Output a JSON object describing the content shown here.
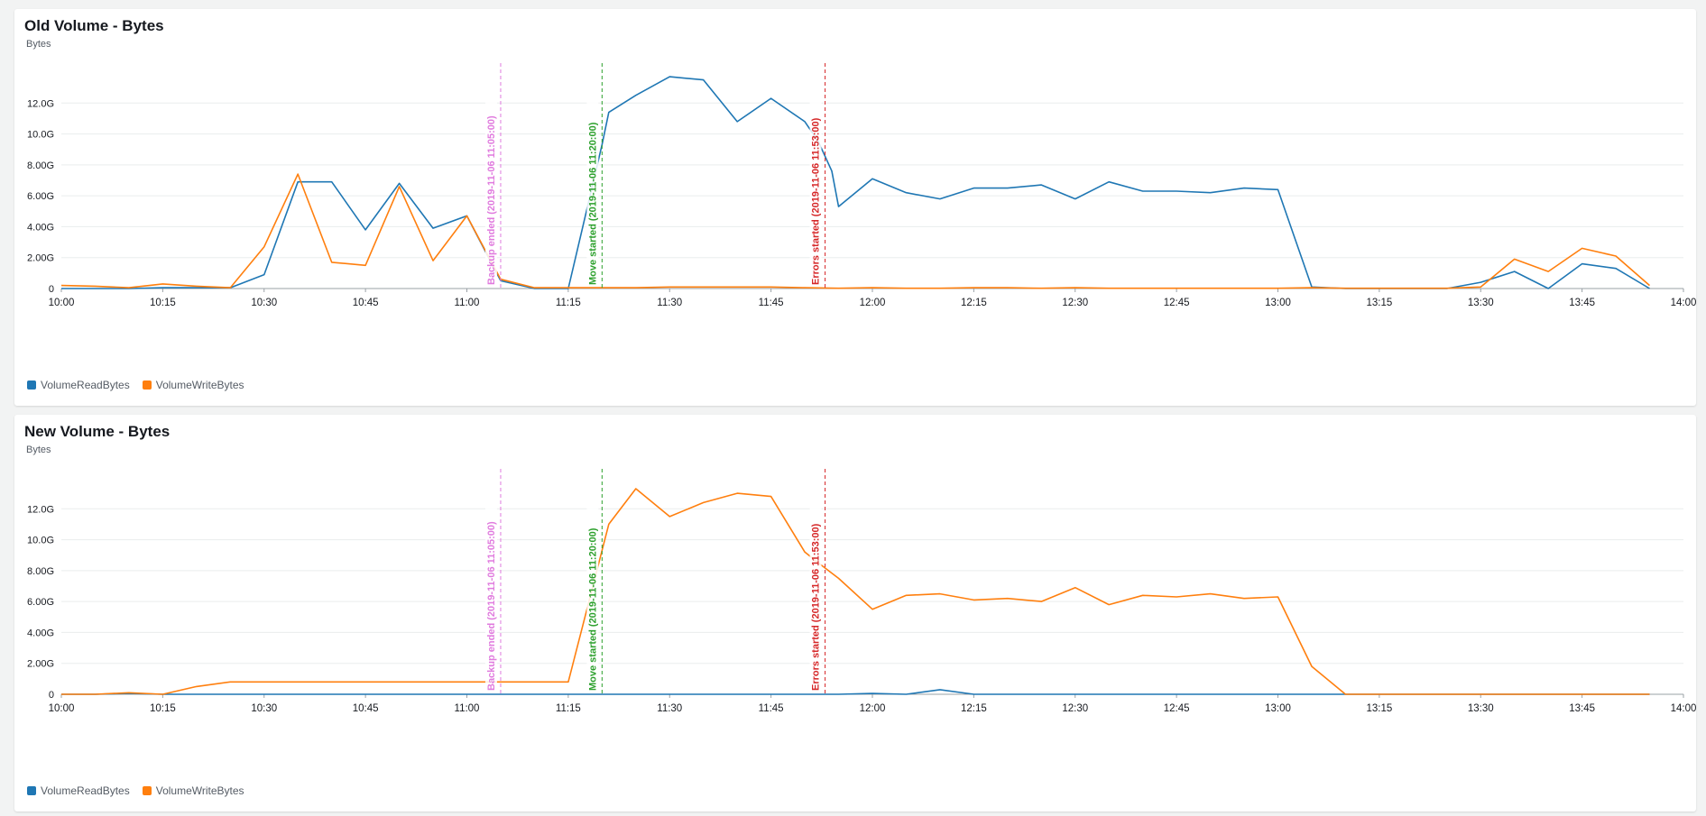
{
  "chart_data": [
    {
      "type": "line",
      "title": "Old Volume - Bytes",
      "ylabel": "Bytes",
      "xlabel": "",
      "ylim": [
        0,
        14
      ],
      "y_unit": "G",
      "yticks": [
        {
          "value": 0,
          "label": "0"
        },
        {
          "value": 2,
          "label": "2.00G"
        },
        {
          "value": 4,
          "label": "4.00G"
        },
        {
          "value": 6,
          "label": "6.00G"
        },
        {
          "value": 8,
          "label": "8.00G"
        },
        {
          "value": 10,
          "label": "10.0G"
        },
        {
          "value": 12,
          "label": "12.0G"
        }
      ],
      "xlim": [
        600,
        840
      ],
      "xticks": [
        {
          "value": 600,
          "label": "10:00"
        },
        {
          "value": 615,
          "label": "10:15"
        },
        {
          "value": 630,
          "label": "10:30"
        },
        {
          "value": 645,
          "label": "10:45"
        },
        {
          "value": 660,
          "label": "11:00"
        },
        {
          "value": 675,
          "label": "11:15"
        },
        {
          "value": 690,
          "label": "11:30"
        },
        {
          "value": 705,
          "label": "11:45"
        },
        {
          "value": 720,
          "label": "12:00"
        },
        {
          "value": 735,
          "label": "12:15"
        },
        {
          "value": 750,
          "label": "12:30"
        },
        {
          "value": 765,
          "label": "12:45"
        },
        {
          "value": 780,
          "label": "13:00"
        },
        {
          "value": 795,
          "label": "13:15"
        },
        {
          "value": 810,
          "label": "13:30"
        },
        {
          "value": 825,
          "label": "13:45"
        },
        {
          "value": 840,
          "label": "14:00"
        }
      ],
      "annotations": [
        {
          "x": 665,
          "label": "Backup ended (2019-11-06 11:05:00)",
          "color": "#e07bde"
        },
        {
          "x": 680,
          "label": "Move started (2019-11-06 11:20:00)",
          "color": "#2ca02c"
        },
        {
          "x": 713,
          "label": "Errors started (2019-11-06 11:53:00)",
          "color": "#d62728"
        }
      ],
      "series": [
        {
          "name": "VolumeReadBytes",
          "color": "#1f77b4",
          "x": [
            600,
            605,
            610,
            615,
            620,
            625,
            630,
            635,
            640,
            645,
            650,
            655,
            660,
            665,
            670,
            675,
            680,
            681,
            685,
            690,
            695,
            700,
            705,
            710,
            712,
            714,
            715,
            720,
            725,
            730,
            735,
            740,
            745,
            750,
            755,
            760,
            765,
            770,
            775,
            780,
            785,
            790,
            795,
            800,
            805,
            810,
            815,
            820,
            825,
            830,
            835
          ],
          "values": [
            0,
            0,
            0,
            0.05,
            0.05,
            0.05,
            0.9,
            6.9,
            6.9,
            3.8,
            6.8,
            3.9,
            4.7,
            0.5,
            0,
            0,
            9.3,
            11.4,
            12.5,
            13.7,
            13.5,
            10.8,
            12.3,
            10.8,
            9.5,
            7.6,
            5.3,
            7.1,
            6.2,
            5.8,
            6.5,
            6.5,
            6.7,
            5.8,
            6.9,
            6.3,
            6.3,
            6.2,
            6.5,
            6.4,
            0.1,
            0,
            0,
            0,
            0,
            0.4,
            1.1,
            0,
            1.6,
            1.3,
            0
          ]
        },
        {
          "name": "VolumeWriteBytes",
          "color": "#ff7f0e",
          "x": [
            600,
            605,
            610,
            615,
            620,
            625,
            630,
            635,
            640,
            645,
            650,
            655,
            660,
            665,
            670,
            675,
            680,
            685,
            690,
            695,
            700,
            705,
            710,
            715,
            720,
            725,
            730,
            735,
            740,
            745,
            750,
            755,
            760,
            765,
            770,
            775,
            780,
            785,
            790,
            795,
            800,
            805,
            810,
            815,
            820,
            825,
            830,
            835
          ],
          "values": [
            0.2,
            0.15,
            0.05,
            0.3,
            0.15,
            0.05,
            2.7,
            7.4,
            1.7,
            1.5,
            6.6,
            1.8,
            4.7,
            0.6,
            0.05,
            0.05,
            0.05,
            0.05,
            0.1,
            0.1,
            0.1,
            0.1,
            0.05,
            0.02,
            0.05,
            0.02,
            0.02,
            0.05,
            0.05,
            0.02,
            0.05,
            0.02,
            0.02,
            0.02,
            0.02,
            0.02,
            0.02,
            0.05,
            0.02,
            0.02,
            0.02,
            0.02,
            0.1,
            1.9,
            1.1,
            2.6,
            2.1,
            0.2
          ]
        }
      ],
      "legend": [
        "VolumeReadBytes",
        "VolumeWriteBytes"
      ],
      "legend_position": "bottom-left"
    },
    {
      "type": "line",
      "title": "New Volume - Bytes",
      "ylabel": "Bytes",
      "xlabel": "",
      "ylim": [
        0,
        14
      ],
      "y_unit": "G",
      "yticks": [
        {
          "value": 0,
          "label": "0"
        },
        {
          "value": 2,
          "label": "2.00G"
        },
        {
          "value": 4,
          "label": "4.00G"
        },
        {
          "value": 6,
          "label": "6.00G"
        },
        {
          "value": 8,
          "label": "8.00G"
        },
        {
          "value": 10,
          "label": "10.0G"
        },
        {
          "value": 12,
          "label": "12.0G"
        }
      ],
      "xlim": [
        600,
        840
      ],
      "xticks": [
        {
          "value": 600,
          "label": "10:00"
        },
        {
          "value": 615,
          "label": "10:15"
        },
        {
          "value": 630,
          "label": "10:30"
        },
        {
          "value": 645,
          "label": "10:45"
        },
        {
          "value": 660,
          "label": "11:00"
        },
        {
          "value": 675,
          "label": "11:15"
        },
        {
          "value": 690,
          "label": "11:30"
        },
        {
          "value": 705,
          "label": "11:45"
        },
        {
          "value": 720,
          "label": "12:00"
        },
        {
          "value": 735,
          "label": "12:15"
        },
        {
          "value": 750,
          "label": "12:30"
        },
        {
          "value": 765,
          "label": "12:45"
        },
        {
          "value": 780,
          "label": "13:00"
        },
        {
          "value": 795,
          "label": "13:15"
        },
        {
          "value": 810,
          "label": "13:30"
        },
        {
          "value": 825,
          "label": "13:45"
        },
        {
          "value": 840,
          "label": "14:00"
        }
      ],
      "annotations": [
        {
          "x": 665,
          "label": "Backup ended (2019-11-06 11:05:00)",
          "color": "#e07bde"
        },
        {
          "x": 680,
          "label": "Move started (2019-11-06 11:20:00)",
          "color": "#2ca02c"
        },
        {
          "x": 713,
          "label": "Errors started (2019-11-06 11:53:00)",
          "color": "#d62728"
        }
      ],
      "series": [
        {
          "name": "VolumeReadBytes",
          "color": "#1f77b4",
          "x": [
            600,
            605,
            610,
            615,
            620,
            625,
            630,
            635,
            640,
            645,
            650,
            655,
            660,
            665,
            670,
            675,
            680,
            685,
            690,
            695,
            700,
            705,
            710,
            715,
            720,
            725,
            730,
            735,
            740,
            745,
            750,
            755,
            760,
            765,
            770,
            775,
            780,
            785,
            790,
            795,
            800,
            805,
            810,
            815,
            820,
            825,
            830,
            835
          ],
          "values": [
            0,
            0,
            0.05,
            0,
            0,
            0,
            0,
            0,
            0,
            0,
            0,
            0,
            0,
            0,
            0,
            0,
            0,
            0,
            0,
            0,
            0,
            0,
            0,
            0,
            0.05,
            0,
            0.3,
            0,
            0,
            0,
            0,
            0,
            0,
            0,
            0,
            0,
            0,
            0,
            0,
            0,
            0,
            0,
            0,
            0,
            0,
            0,
            0,
            0
          ]
        },
        {
          "name": "VolumeWriteBytes",
          "color": "#ff7f0e",
          "x": [
            600,
            605,
            610,
            615,
            620,
            625,
            630,
            635,
            640,
            645,
            650,
            655,
            660,
            665,
            670,
            675,
            680,
            681,
            685,
            690,
            695,
            700,
            705,
            710,
            712,
            715,
            720,
            725,
            730,
            735,
            740,
            745,
            750,
            755,
            760,
            765,
            770,
            775,
            780,
            785,
            790,
            795,
            800,
            805,
            810,
            815,
            820,
            825,
            830,
            835
          ],
          "values": [
            0,
            0,
            0.1,
            0,
            0.5,
            0.8,
            0.8,
            0.8,
            0.8,
            0.8,
            0.8,
            0.8,
            0.8,
            0.8,
            0.8,
            0.8,
            9.3,
            11.0,
            13.3,
            11.5,
            12.4,
            13.0,
            12.8,
            9.2,
            8.5,
            7.5,
            5.5,
            6.4,
            6.5,
            6.1,
            6.2,
            6.0,
            6.9,
            5.8,
            6.4,
            6.3,
            6.5,
            6.2,
            6.3,
            1.8,
            0,
            0,
            0,
            0,
            0,
            0,
            0,
            0,
            0,
            0
          ]
        }
      ],
      "legend": [
        "VolumeReadBytes",
        "VolumeWriteBytes"
      ],
      "legend_position": "bottom-left"
    }
  ]
}
